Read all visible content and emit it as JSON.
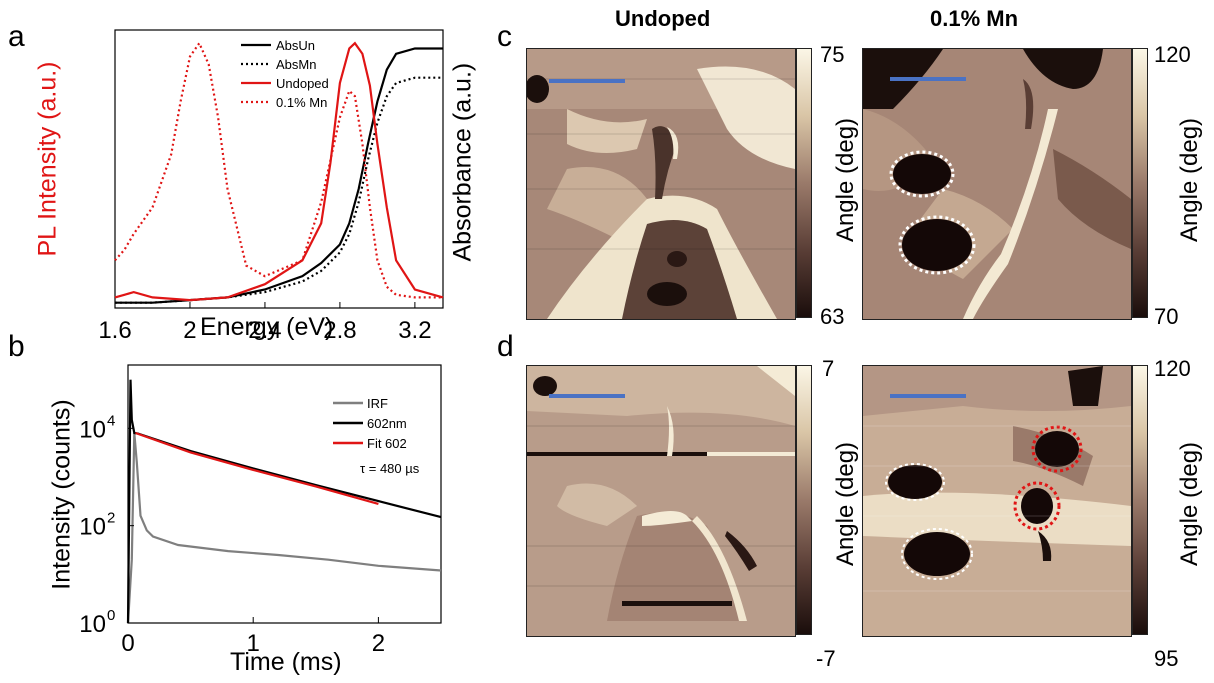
{
  "panels": {
    "a": "a",
    "b": "b",
    "c": "c",
    "d": "d"
  },
  "column_titles": {
    "left": "Undoped",
    "right": "0.1% Mn"
  },
  "colors": {
    "black": "#000000",
    "red": "#e01515",
    "gray": "#7f7f7f",
    "scalebar": "#4a72c4",
    "map_dark": "#1a0d0b",
    "map_mid": "#9c7a6c",
    "map_light": "#f4ebd6"
  },
  "chart_data": [
    {
      "id": "a",
      "type": "line",
      "xlabel": "Energy (eV)",
      "ylabel_left": "PL Intensity (a.u.)",
      "ylabel_right": "Absorbance (a.u.)",
      "xlim": [
        1.6,
        3.35
      ],
      "xticks": [
        1.6,
        2.0,
        2.4,
        2.8,
        3.2
      ],
      "xtick_labels": [
        "1.6",
        "2",
        "2.4",
        "2.8",
        "3.2"
      ],
      "ylim": [
        0,
        1.05
      ],
      "legend": "top-right",
      "series": [
        {
          "name": "AbsUn",
          "style": "solid",
          "color": "#000000",
          "x": [
            1.6,
            1.8,
            2.0,
            2.2,
            2.4,
            2.6,
            2.7,
            2.8,
            2.85,
            2.9,
            2.95,
            3.0,
            3.05,
            3.1,
            3.2,
            3.35
          ],
          "y": [
            0.02,
            0.02,
            0.03,
            0.04,
            0.07,
            0.12,
            0.17,
            0.24,
            0.32,
            0.45,
            0.62,
            0.78,
            0.9,
            0.96,
            0.98,
            0.98
          ]
        },
        {
          "name": "AbsMn",
          "style": "dotted",
          "color": "#000000",
          "x": [
            1.6,
            1.8,
            2.0,
            2.2,
            2.4,
            2.6,
            2.7,
            2.8,
            2.85,
            2.9,
            2.95,
            3.0,
            3.05,
            3.1,
            3.2,
            3.35
          ],
          "y": [
            0.02,
            0.02,
            0.03,
            0.04,
            0.06,
            0.1,
            0.14,
            0.21,
            0.28,
            0.4,
            0.56,
            0.7,
            0.8,
            0.85,
            0.87,
            0.87
          ]
        },
        {
          "name": "Undoped",
          "style": "solid",
          "color": "#e01515",
          "x": [
            1.6,
            1.65,
            1.7,
            1.8,
            2.0,
            2.2,
            2.4,
            2.6,
            2.7,
            2.75,
            2.8,
            2.85,
            2.88,
            2.92,
            2.96,
            3.0,
            3.05,
            3.1,
            3.2,
            3.35
          ],
          "y": [
            0.04,
            0.05,
            0.06,
            0.04,
            0.03,
            0.04,
            0.09,
            0.18,
            0.32,
            0.55,
            0.85,
            0.98,
            1.0,
            0.96,
            0.84,
            0.62,
            0.38,
            0.18,
            0.07,
            0.04
          ]
        },
        {
          "name": "0.1% Mn",
          "style": "dotted",
          "color": "#e01515",
          "x": [
            1.6,
            1.65,
            1.7,
            1.8,
            1.9,
            1.95,
            2.0,
            2.05,
            2.1,
            2.15,
            2.2,
            2.3,
            2.4,
            2.6,
            2.7,
            2.8,
            2.85,
            2.88,
            2.92,
            2.96,
            3.0,
            3.05,
            3.1,
            3.2,
            3.35
          ],
          "y": [
            0.18,
            0.22,
            0.28,
            0.38,
            0.58,
            0.78,
            0.95,
            1.0,
            0.92,
            0.72,
            0.45,
            0.16,
            0.12,
            0.18,
            0.4,
            0.72,
            0.82,
            0.8,
            0.62,
            0.38,
            0.18,
            0.08,
            0.05,
            0.04,
            0.04
          ]
        }
      ]
    },
    {
      "id": "b",
      "type": "line",
      "xlabel": "Time (ms)",
      "ylabel": "Intensity (counts)",
      "yscale": "log",
      "xlim": [
        0,
        2.5
      ],
      "ylim": [
        1,
        200000
      ],
      "xticks": [
        0,
        1,
        2
      ],
      "yticks": [
        1,
        100,
        10000
      ],
      "ytick_labels": [
        "10",
        "10",
        "10"
      ],
      "ytick_exponents": [
        "0",
        "2",
        "4"
      ],
      "legend": "top-right",
      "annotation": "τ = 480 µs",
      "series": [
        {
          "name": "IRF",
          "color": "#7f7f7f",
          "x": [
            0,
            0.03,
            0.05,
            0.07,
            0.1,
            0.15,
            0.2,
            0.4,
            0.8,
            1.2,
            1.6,
            2.0,
            2.5
          ],
          "y": [
            1,
            20,
            8000,
            2000,
            160,
            80,
            60,
            40,
            30,
            25,
            20,
            15,
            12
          ]
        },
        {
          "name": "602nm",
          "color": "#000000",
          "x": [
            0,
            0.02,
            0.03,
            0.05,
            0.08,
            0.1,
            0.5,
            1.0,
            1.5,
            2.0,
            2.5
          ],
          "y": [
            1,
            100000,
            15000,
            8000,
            7800,
            7500,
            3400,
            1500,
            680,
            320,
            150
          ]
        },
        {
          "name": "Fit 602",
          "color": "#e01515",
          "x": [
            0.06,
            0.5,
            1.0,
            1.5,
            2.0
          ],
          "y": [
            8000,
            3200,
            1400,
            640,
            280
          ]
        }
      ]
    }
  ],
  "maps": {
    "c_left": {
      "cbar_max": "75",
      "cbar_min": "63",
      "cbar_label": "Angle (deg)"
    },
    "c_right": {
      "cbar_max": "120",
      "cbar_min": "70",
      "cbar_label": "Angle (deg)"
    },
    "d_left": {
      "cbar_max": "7",
      "cbar_min": "-7",
      "cbar_label": "Angle (deg)"
    },
    "d_right": {
      "cbar_max": "120",
      "cbar_min": "95",
      "cbar_label": "Angle (deg)"
    }
  }
}
